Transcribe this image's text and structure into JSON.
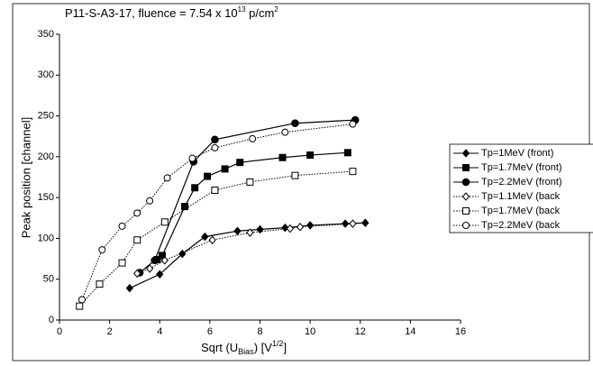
{
  "chart_data": {
    "type": "scatter",
    "title": [
      "P11-S-A3-17,  fluence = 7.54 x 10",
      "13",
      " p/cm",
      "2"
    ],
    "x_label": [
      "Sqrt (U",
      "Bias",
      ")   [V",
      "1/2",
      "]"
    ],
    "y_label": "Peak position  [channel]",
    "xlim": [
      0,
      16
    ],
    "xticks": [
      0,
      2,
      4,
      6,
      8,
      10,
      12,
      14,
      16
    ],
    "ylim": [
      0,
      350
    ],
    "yticks": [
      0,
      50,
      100,
      150,
      200,
      250,
      300,
      350
    ],
    "grid": false,
    "legend": "right",
    "series": [
      {
        "name": "Tp=1MeV (front)",
        "color": "#000000",
        "marker": "diamond",
        "filled": true,
        "line": "solid",
        "x": [
          2.8,
          4.0,
          4.9,
          5.8,
          7.1,
          8.0,
          9.0,
          10.0,
          11.4,
          12.2
        ],
        "values": [
          39,
          56,
          81,
          102,
          109,
          111,
          113,
          116,
          118,
          119
        ]
      },
      {
        "name": "Tp=1.7MeV (front)",
        "color": "#000000",
        "marker": "square",
        "filled": true,
        "line": "solid",
        "x": [
          3.9,
          4.1,
          5.0,
          5.4,
          5.9,
          6.6,
          7.2,
          8.9,
          10.0,
          11.5
        ],
        "values": [
          74,
          79,
          139,
          162,
          176,
          185,
          193,
          199,
          202,
          205
        ]
      },
      {
        "name": "Tp=2.2MeV (front)",
        "color": "#000000",
        "marker": "circle",
        "filled": true,
        "line": "solid",
        "x": [
          3.2,
          3.8,
          5.35,
          6.2,
          9.4,
          11.8
        ],
        "values": [
          58,
          73,
          194,
          221,
          241,
          245
        ]
      },
      {
        "name": "Tp=1.1MeV  (back",
        "color": "#000000",
        "marker": "diamond",
        "filled": false,
        "line": "dotted",
        "x": [
          3.1,
          3.6,
          4.2,
          6.1,
          7.6,
          9.2,
          9.6,
          11.7
        ],
        "values": [
          57,
          63,
          73,
          98,
          107,
          112,
          114,
          118
        ]
      },
      {
        "name": "Tp=1.7MeV  (back",
        "color": "#000000",
        "marker": "square",
        "filled": false,
        "line": "dotted",
        "x": [
          0.8,
          1.6,
          2.5,
          3.1,
          4.2,
          6.2,
          7.6,
          9.4,
          11.7
        ],
        "values": [
          17,
          44,
          70,
          98,
          120,
          159,
          169,
          177,
          182
        ]
      },
      {
        "name": "Tp=2.2MeV  (back",
        "color": "#000000",
        "marker": "circle",
        "filled": false,
        "line": "dotted",
        "x": [
          0.9,
          1.7,
          2.5,
          3.1,
          3.6,
          4.3,
          5.3,
          6.2,
          7.7,
          9.0,
          11.7
        ],
        "values": [
          25,
          86,
          115,
          131,
          146,
          174,
          198,
          211,
          222,
          230,
          240
        ]
      }
    ]
  }
}
